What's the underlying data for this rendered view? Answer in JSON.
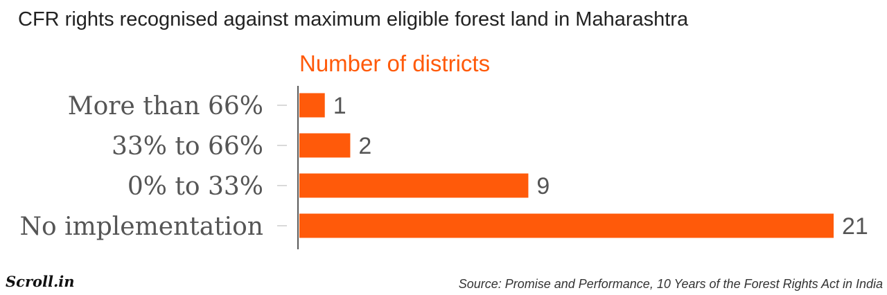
{
  "header": {
    "title": "CFR rights recognised against maximum eligible forest land in Maharashtra"
  },
  "chart_data": {
    "type": "bar",
    "orientation": "horizontal",
    "title": "CFR rights recognised against maximum eligible forest land in Maharashtra",
    "series": [
      {
        "name": "Number of districts",
        "values": [
          1,
          2,
          9,
          21
        ]
      }
    ],
    "categories": [
      "More than 66%",
      "33% to 66%",
      "0% to 33%",
      "No implementation"
    ],
    "xlim": [
      0,
      21
    ],
    "grid": false,
    "legend": "top",
    "bar_color": "#ff5a0a",
    "legend_color": "#ff5a0a"
  },
  "footer": {
    "logo": "Scroll.in",
    "source": "Source: Promise and Performance, 10 Years of the Forest Rights Act in India"
  }
}
